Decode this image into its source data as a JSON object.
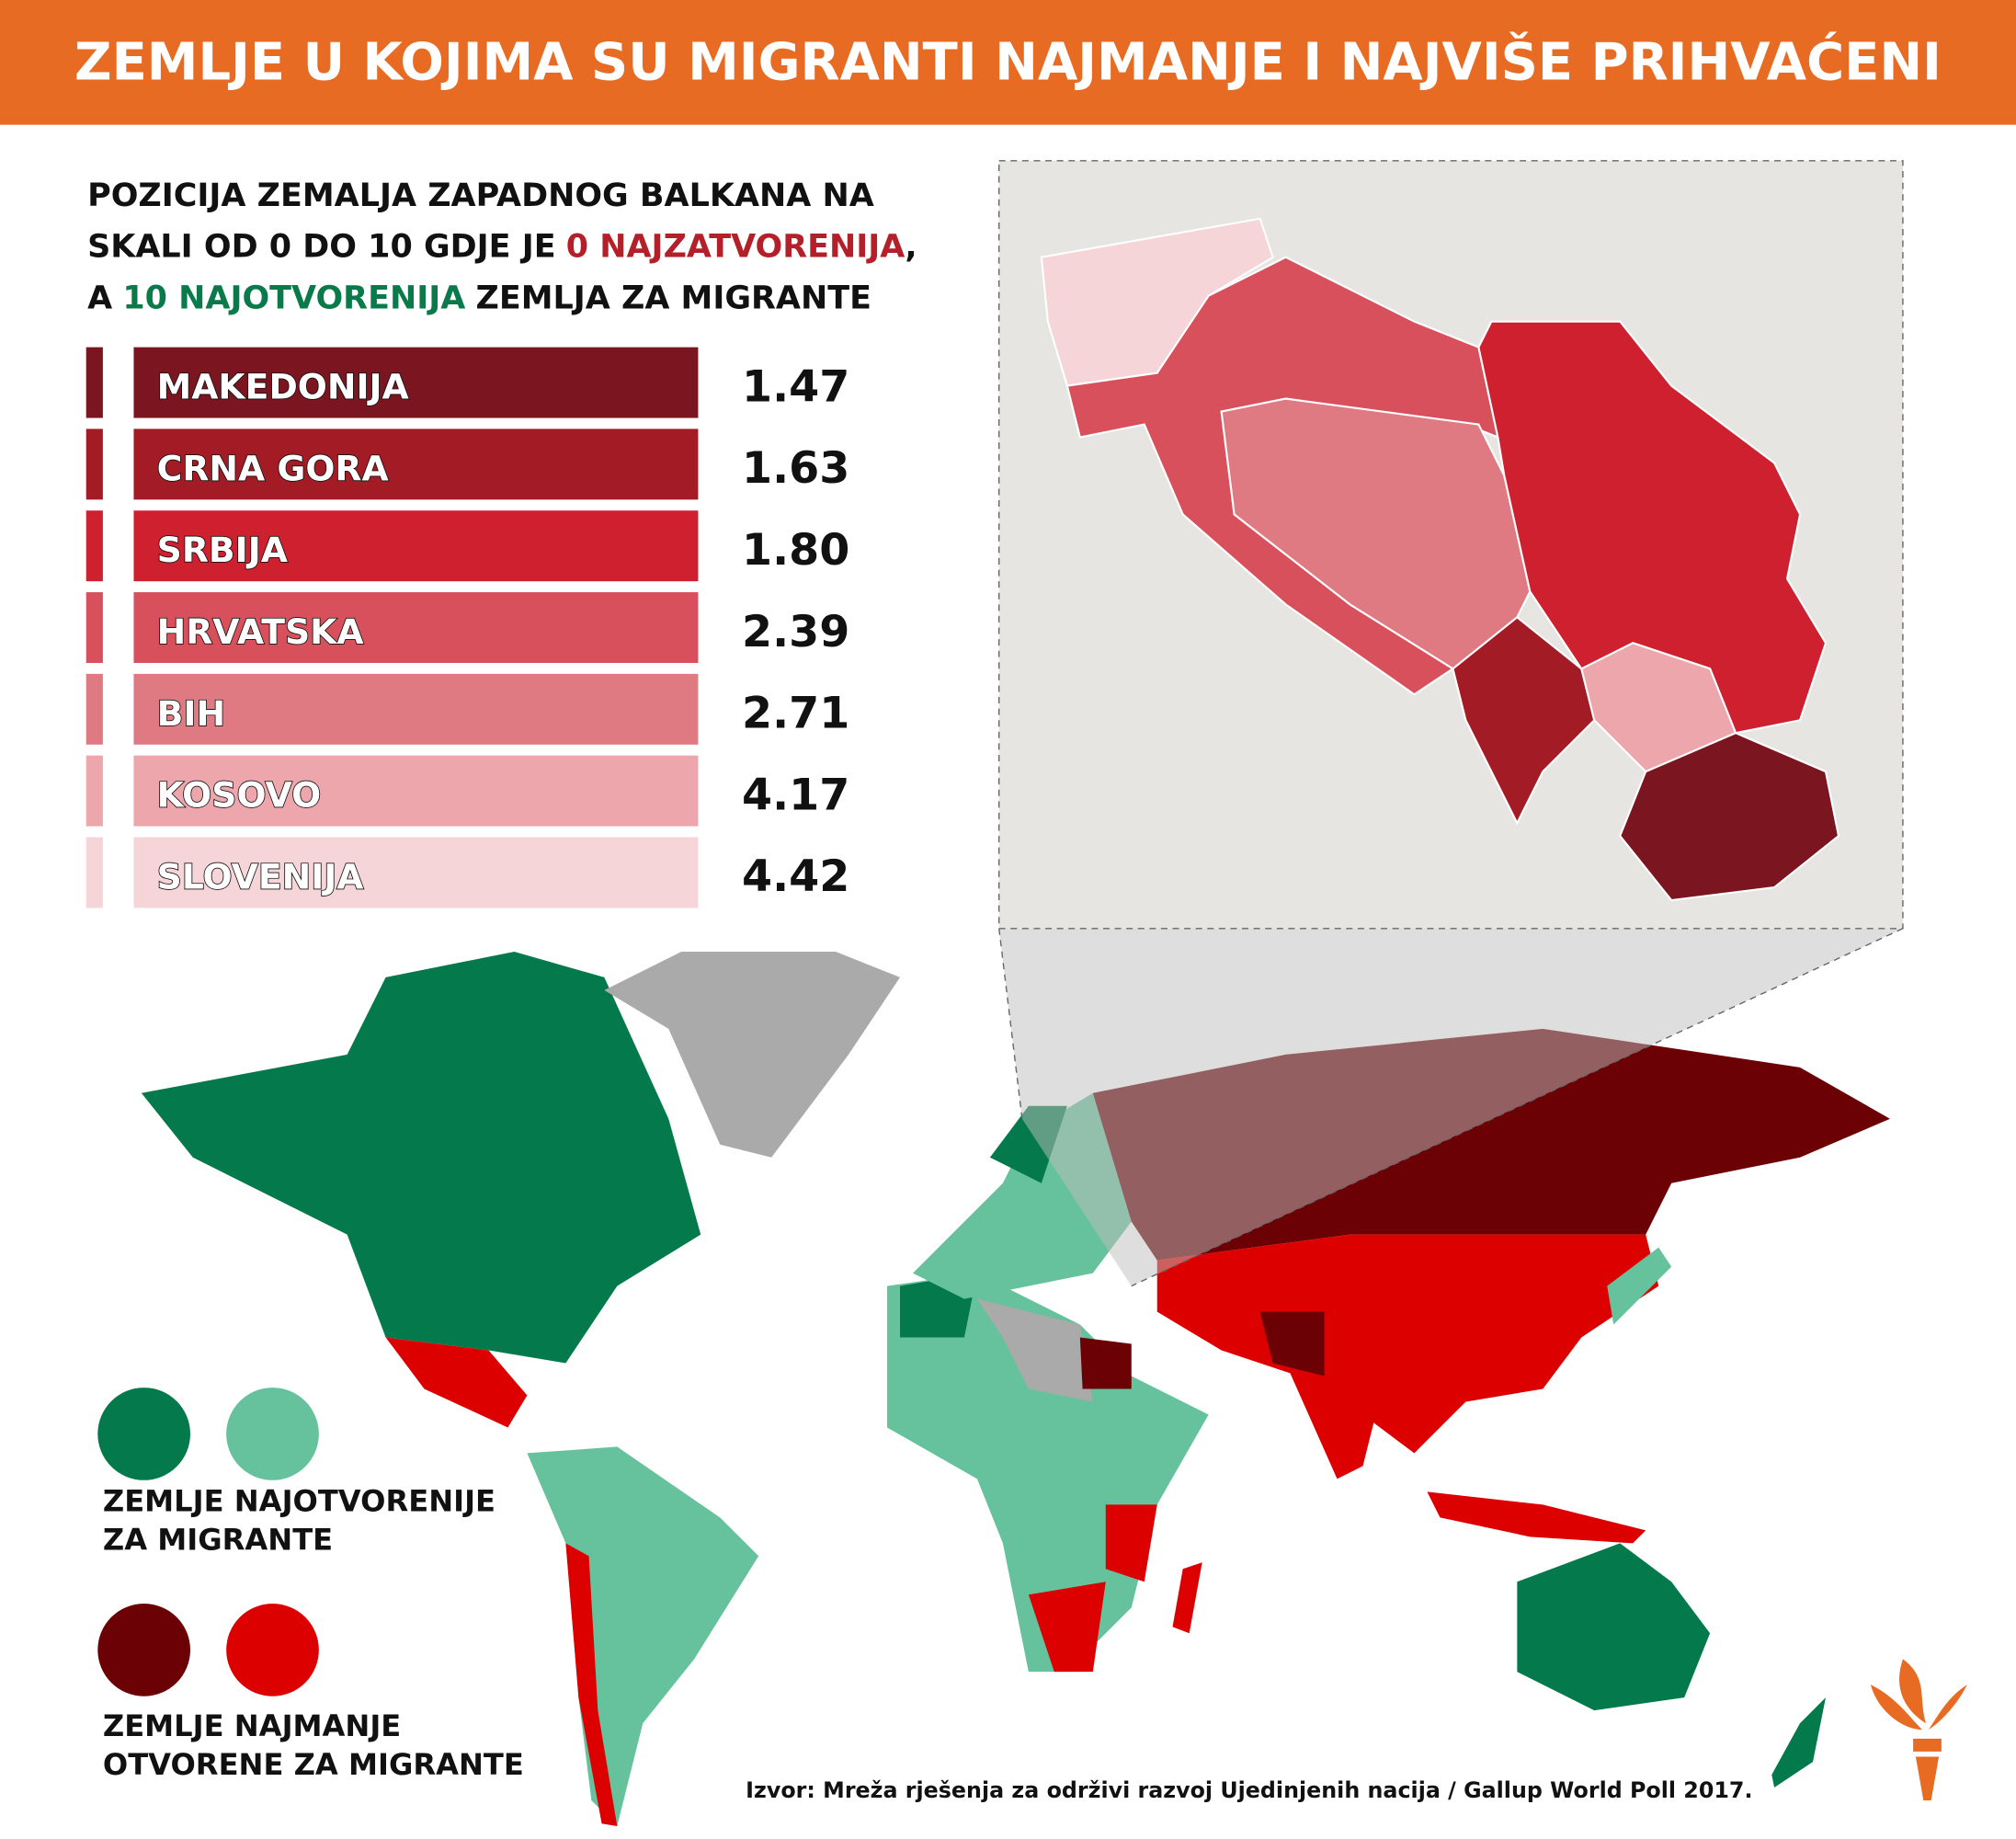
{
  "header": {
    "title": "ZEMLJE U KOJIMA SU MIGRANTI NAJMANJE I NAJVIŠE PRIHVAĆENI"
  },
  "subtitle": {
    "lines": [
      [
        {
          "text": "POZICIJA ZEMALJA ZAPADNOG BALKANA NA"
        }
      ],
      [
        {
          "text": "SKALI OD 0 DO 10 GDJE JE"
        },
        {
          "text": "0 NAJZATVORENIJA",
          "color": "#b3202a"
        },
        {
          "text": ","
        }
      ],
      [
        {
          "text": "A"
        },
        {
          "text": "10 NAJOTVORENIJA",
          "color": "#0a7a4b"
        },
        {
          "text": "ZEMLJA ZA MIGRANTE"
        }
      ]
    ]
  },
  "table": {
    "rows": [
      {
        "name": "MAKEDONIJA",
        "value": "1.47",
        "color": "#7b1520"
      },
      {
        "name": "CRNA GORA",
        "value": "1.63",
        "color": "#a31c25"
      },
      {
        "name": "SRBIJA",
        "value": "1.80",
        "color": "#cf2030"
      },
      {
        "name": "HRVATSKA",
        "value": "2.39",
        "color": "#d8505b"
      },
      {
        "name": "BIH",
        "value": "2.71",
        "color": "#e07a82"
      },
      {
        "name": "KOSOVO",
        "value": "4.17",
        "color": "#eda6ab"
      },
      {
        "name": "SLOVENIJA",
        "value": "4.42",
        "color": "#f6d5d8"
      }
    ]
  },
  "legend": {
    "open": {
      "colors": [
        "#047a4c",
        "#66c29d"
      ],
      "lines": [
        "ZEMLJE NAJOTVORENIJE",
        "ZA MIGRANTE"
      ]
    },
    "closed": {
      "colors": [
        "#6b0005",
        "#dc0000"
      ],
      "lines": [
        "ZEMLJE NAJMANJE",
        "OTVORENE ZA MIGRANTE"
      ]
    }
  },
  "source": "Izvor: Mreža rješenja za održivi razvoj Ujedinjenih nacija / Gallup World Poll 2017."
}
